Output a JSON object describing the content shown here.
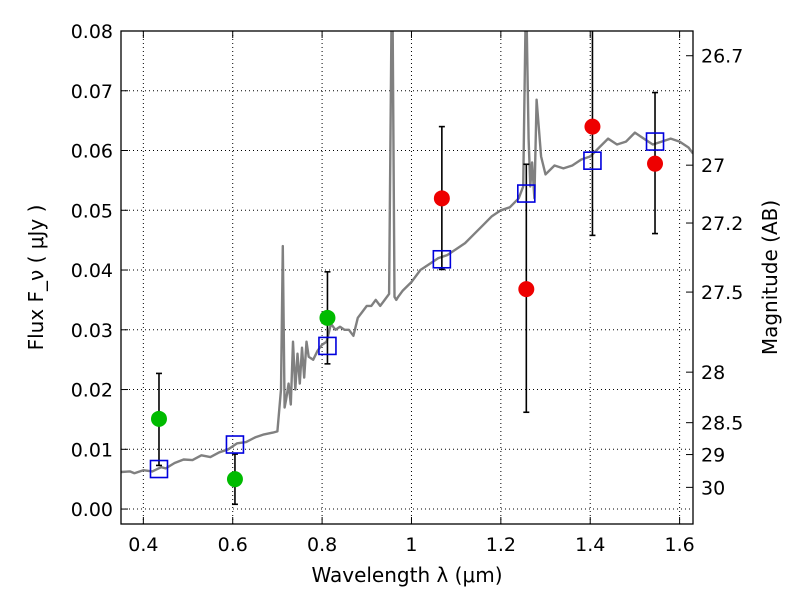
{
  "chart_data": {
    "type": "scatter",
    "xlabel": "Wavelength  λ (μm)",
    "ylabel": "Flux  F_ν  ( μJy )",
    "y2label": "Magnitude (AB)",
    "xlim": [
      0.35,
      1.63
    ],
    "ylim": [
      -0.0025,
      0.08
    ],
    "xticks": [
      0.4,
      0.6,
      0.8,
      1.0,
      1.2,
      1.4,
      1.6
    ],
    "xtick_labels": [
      "0.4",
      "0.6",
      "0.8",
      "1",
      "1.2",
      "1.4",
      "1.6"
    ],
    "yticks": [
      0.0,
      0.01,
      0.02,
      0.03,
      0.04,
      0.05,
      0.06,
      0.07,
      0.08
    ],
    "ytick_labels": [
      "0.00",
      "0.01",
      "0.02",
      "0.03",
      "0.04",
      "0.05",
      "0.06",
      "0.07",
      "0.08"
    ],
    "y2ticks": [
      26.7,
      27.0,
      27.2,
      27.5,
      28.0,
      28.5,
      29.0,
      30.0
    ],
    "y2tick_labels": [
      "26.7",
      "27",
      "27.2",
      "27.5",
      "28",
      "28.5",
      "29",
      "30"
    ],
    "grid": true,
    "series": [
      {
        "kind": "line",
        "color": "#808080",
        "x": [
          0.35,
          0.37,
          0.38,
          0.4,
          0.42,
          0.44,
          0.45,
          0.47,
          0.49,
          0.51,
          0.53,
          0.55,
          0.57,
          0.59,
          0.61,
          0.63,
          0.65,
          0.67,
          0.69,
          0.7,
          0.708,
          0.712,
          0.716,
          0.72,
          0.725,
          0.73,
          0.735,
          0.74,
          0.745,
          0.75,
          0.755,
          0.76,
          0.765,
          0.77,
          0.78,
          0.79,
          0.8,
          0.81,
          0.82,
          0.83,
          0.84,
          0.85,
          0.86,
          0.87,
          0.88,
          0.89,
          0.9,
          0.91,
          0.92,
          0.93,
          0.94,
          0.95,
          0.955,
          0.958,
          0.962,
          0.966,
          0.97,
          0.98,
          1.0,
          1.02,
          1.04,
          1.06,
          1.08,
          1.1,
          1.12,
          1.14,
          1.16,
          1.18,
          1.2,
          1.22,
          1.24,
          1.25,
          1.255,
          1.258,
          1.262,
          1.266,
          1.27,
          1.275,
          1.28,
          1.29,
          1.3,
          1.32,
          1.34,
          1.36,
          1.38,
          1.4,
          1.42,
          1.44,
          1.46,
          1.48,
          1.5,
          1.52,
          1.54,
          1.56,
          1.58,
          1.6,
          1.62,
          1.63
        ],
        "y": [
          0.0062,
          0.0063,
          0.006,
          0.0065,
          0.0063,
          0.007,
          0.0068,
          0.0077,
          0.0083,
          0.0082,
          0.009,
          0.0087,
          0.0095,
          0.01,
          0.011,
          0.0112,
          0.012,
          0.0125,
          0.0128,
          0.013,
          0.02,
          0.044,
          0.017,
          0.0185,
          0.021,
          0.0175,
          0.028,
          0.02,
          0.026,
          0.021,
          0.027,
          0.022,
          0.028,
          0.0255,
          0.025,
          0.0265,
          0.0275,
          0.028,
          0.031,
          0.03,
          0.0305,
          0.03,
          0.03,
          0.029,
          0.032,
          0.033,
          0.034,
          0.034,
          0.035,
          0.034,
          0.035,
          0.036,
          0.08,
          0.08,
          0.0355,
          0.035,
          0.0355,
          0.0365,
          0.038,
          0.04,
          0.041,
          0.042,
          0.0425,
          0.0435,
          0.0445,
          0.046,
          0.0475,
          0.049,
          0.05,
          0.0505,
          0.052,
          0.054,
          0.08,
          0.08,
          0.062,
          0.054,
          0.058,
          0.052,
          0.0685,
          0.059,
          0.056,
          0.0575,
          0.057,
          0.0575,
          0.0585,
          0.059,
          0.0605,
          0.062,
          0.061,
          0.0615,
          0.063,
          0.062,
          0.061,
          0.0615,
          0.062,
          0.0615,
          0.0605,
          0.0595
        ]
      },
      {
        "kind": "points",
        "marker": "circle",
        "color": "#00bb00",
        "x": [
          0.435,
          0.605,
          0.812
        ],
        "y": [
          0.0151,
          0.005,
          0.032
        ],
        "yerr_low": [
          0.0073,
          0.0008,
          0.0243
        ],
        "yerr_high": [
          0.0227,
          0.0092,
          0.0397
        ]
      },
      {
        "kind": "points",
        "marker": "circle",
        "color": "#ee0000",
        "x": [
          1.068,
          1.257,
          1.405,
          1.545
        ],
        "y": [
          0.052,
          0.0368,
          0.064,
          0.0578
        ],
        "yerr_low": [
          0.0401,
          0.0162,
          0.0458,
          0.0461
        ],
        "yerr_high": [
          0.064,
          0.0577,
          0.0802,
          0.0697
        ]
      },
      {
        "kind": "points",
        "marker": "square-open",
        "color": "#0000dd",
        "x": [
          0.435,
          0.605,
          0.812,
          1.068,
          1.257,
          1.405,
          1.545
        ],
        "y": [
          0.0067,
          0.0108,
          0.0273,
          0.0418,
          0.0528,
          0.0583,
          0.0615
        ]
      }
    ]
  }
}
